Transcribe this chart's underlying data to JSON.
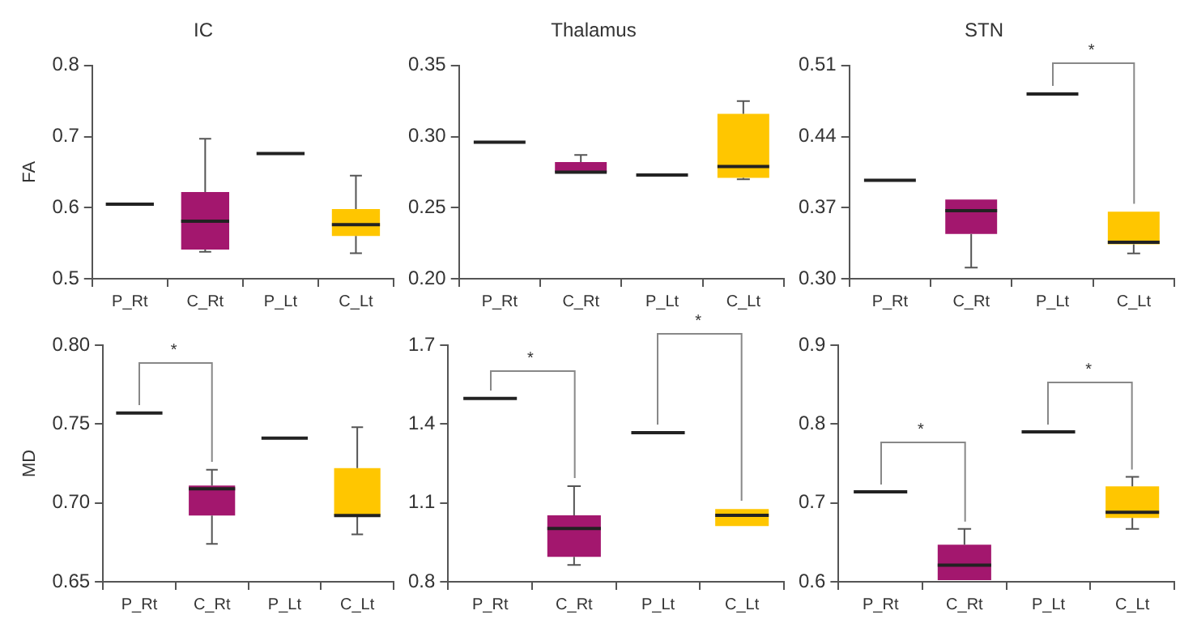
{
  "chart_data": [
    {
      "type": "box",
      "title": "IC",
      "ylabel": "FA",
      "categories": [
        "P_Rt",
        "C_Rt",
        "P_Lt",
        "C_Lt"
      ],
      "colors": [
        "#222222",
        "#a3176e",
        "#222222",
        "#ffc600"
      ],
      "grid": false,
      "ylim": [
        0.5,
        0.8
      ],
      "yticks": [
        0.5,
        0.6,
        0.7,
        0.8
      ],
      "boxes": [
        {
          "low": 0.605,
          "q1": 0.605,
          "median": 0.605,
          "q3": 0.605,
          "high": 0.605
        },
        {
          "low": 0.538,
          "q1": 0.541,
          "median": 0.581,
          "q3": 0.622,
          "high": 0.697
        },
        {
          "low": 0.676,
          "q1": 0.676,
          "median": 0.676,
          "q3": 0.676,
          "high": 0.676
        },
        {
          "low": 0.536,
          "q1": 0.56,
          "median": 0.576,
          "q3": 0.598,
          "high": 0.645
        }
      ]
    },
    {
      "type": "box",
      "title": "Thalamus",
      "categories": [
        "P_Rt",
        "C_Rt",
        "P_Lt",
        "C_Lt"
      ],
      "colors": [
        "#222222",
        "#a3176e",
        "#222222",
        "#ffc600"
      ],
      "grid": false,
      "ylim": [
        0.2,
        0.35
      ],
      "yticks": [
        {
          "value": 0.2,
          "label": "0.20"
        },
        0.25,
        {
          "value": 0.3,
          "label": "0.30"
        },
        0.35
      ],
      "boxes": [
        {
          "low": 0.296,
          "q1": 0.296,
          "median": 0.296,
          "q3": 0.296,
          "high": 0.296
        },
        {
          "low": 0.275,
          "q1": 0.275,
          "median": 0.275,
          "q3": 0.282,
          "high": 0.287
        },
        {
          "low": 0.273,
          "q1": 0.273,
          "median": 0.273,
          "q3": 0.273,
          "high": 0.273
        },
        {
          "low": 0.27,
          "q1": 0.271,
          "median": 0.279,
          "q3": 0.316,
          "high": 0.325
        }
      ]
    },
    {
      "type": "box",
      "title": "STN",
      "categories": [
        "P_Rt",
        "C_Rt",
        "P_Lt",
        "C_Lt"
      ],
      "colors": [
        "#222222",
        "#a3176e",
        "#222222",
        "#ffc600"
      ],
      "grid": false,
      "ylim": [
        0.3,
        0.51
      ],
      "yticks": [
        {
          "value": 0.3,
          "label": "0.30"
        },
        0.37,
        0.44,
        0.51
      ],
      "boxes": [
        {
          "low": 0.397,
          "q1": 0.397,
          "median": 0.397,
          "q3": 0.397,
          "high": 0.397
        },
        {
          "low": 0.311,
          "q1": 0.344,
          "median": 0.367,
          "q3": 0.378,
          "high": 0.378
        },
        {
          "low": 0.482,
          "q1": 0.482,
          "median": 0.482,
          "q3": 0.482,
          "high": 0.482
        },
        {
          "low": 0.325,
          "q1": 0.334,
          "median": 0.336,
          "q3": 0.366,
          "high": 0.366
        }
      ],
      "annotations": [
        "*"
      ]
    },
    {
      "type": "box",
      "ylabel": "MD",
      "categories": [
        "P_Rt",
        "C_Rt",
        "P_Lt",
        "C_Lt"
      ],
      "colors": [
        "#222222",
        "#a3176e",
        "#222222",
        "#ffc600"
      ],
      "grid": false,
      "ylim": [
        0.65,
        0.8
      ],
      "yticks": [
        0.65,
        {
          "value": 0.7,
          "label": "0.70"
        },
        0.75,
        {
          "value": 0.8,
          "label": "0.80"
        }
      ],
      "boxes": [
        {
          "low": 0.757,
          "q1": 0.757,
          "median": 0.757,
          "q3": 0.757,
          "high": 0.757
        },
        {
          "low": 0.674,
          "q1": 0.692,
          "median": 0.709,
          "q3": 0.711,
          "high": 0.721
        },
        {
          "low": 0.741,
          "q1": 0.741,
          "median": 0.741,
          "q3": 0.741,
          "high": 0.741
        },
        {
          "low": 0.68,
          "q1": 0.692,
          "median": 0.692,
          "q3": 0.722,
          "high": 0.748
        }
      ],
      "annotations": [
        "*"
      ]
    },
    {
      "type": "box",
      "categories": [
        "P_Rt",
        "C_Rt",
        "P_Lt",
        "C_Lt"
      ],
      "colors": [
        "#222222",
        "#a3176e",
        "#222222",
        "#ffc600"
      ],
      "grid": false,
      "ylim": [
        0.8,
        1.7
      ],
      "yticks": [
        0.8,
        1.1,
        1.4,
        1.7
      ],
      "boxes": [
        {
          "low": 1.497,
          "q1": 1.497,
          "median": 1.497,
          "q3": 1.497,
          "high": 1.497
        },
        {
          "low": 0.864,
          "q1": 0.895,
          "median": 1.003,
          "q3": 1.053,
          "high": 1.164
        },
        {
          "low": 1.367,
          "q1": 1.367,
          "median": 1.367,
          "q3": 1.367,
          "high": 1.367
        },
        {
          "low": 1.012,
          "q1": 1.012,
          "median": 1.053,
          "q3": 1.077,
          "high": 1.077
        }
      ],
      "annotations": [
        "*",
        "*"
      ]
    },
    {
      "type": "box",
      "categories": [
        "P_Rt",
        "C_Rt",
        "P_Lt",
        "C_Lt"
      ],
      "colors": [
        "#222222",
        "#a3176e",
        "#222222",
        "#ffc600"
      ],
      "grid": false,
      "ylim": [
        0.6,
        0.9
      ],
      "yticks": [
        0.6,
        0.7,
        0.8,
        0.9
      ],
      "boxes": [
        {
          "low": 0.714,
          "q1": 0.714,
          "median": 0.714,
          "q3": 0.714,
          "high": 0.714
        },
        {
          "low": 0.602,
          "q1": 0.602,
          "median": 0.621,
          "q3": 0.647,
          "high": 0.667
        },
        {
          "low": 0.79,
          "q1": 0.79,
          "median": 0.79,
          "q3": 0.79,
          "high": 0.79
        },
        {
          "low": 0.667,
          "q1": 0.681,
          "median": 0.688,
          "q3": 0.721,
          "high": 0.733
        }
      ],
      "annotations": [
        "*",
        "*"
      ]
    }
  ]
}
